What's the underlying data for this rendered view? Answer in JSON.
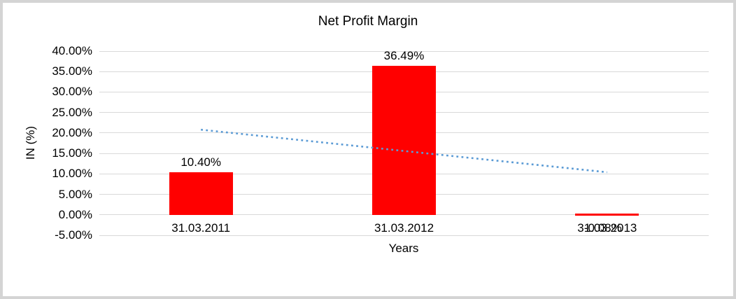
{
  "chart_data": {
    "type": "bar",
    "title": "Net Profit Margin",
    "xlabel": "Years",
    "ylabel": "IN (%)",
    "categories": [
      "31.03.2011",
      "31.03.2012",
      "31.03.2013"
    ],
    "values": [
      10.4,
      36.49,
      -0.08
    ],
    "value_labels": [
      "10.40%",
      "36.49%",
      "-0.08%"
    ],
    "yticks": [
      "40.00%",
      "35.00%",
      "30.00%",
      "25.00%",
      "20.00%",
      "15.00%",
      "10.00%",
      "5.00%",
      "0.00%",
      "-5.00%"
    ],
    "ylim": [
      -5,
      40
    ],
    "ytick_step": 5,
    "grid": true,
    "legend": "none",
    "bar_color": "#ff0000",
    "gridline_color": "#d9d9d9",
    "text_color": "#000000",
    "border_color": "#d4d4d4",
    "trendline": {
      "style": "dotted",
      "color": "#5b9bd5",
      "start_value": 20.8,
      "end_value": 10.4
    }
  }
}
